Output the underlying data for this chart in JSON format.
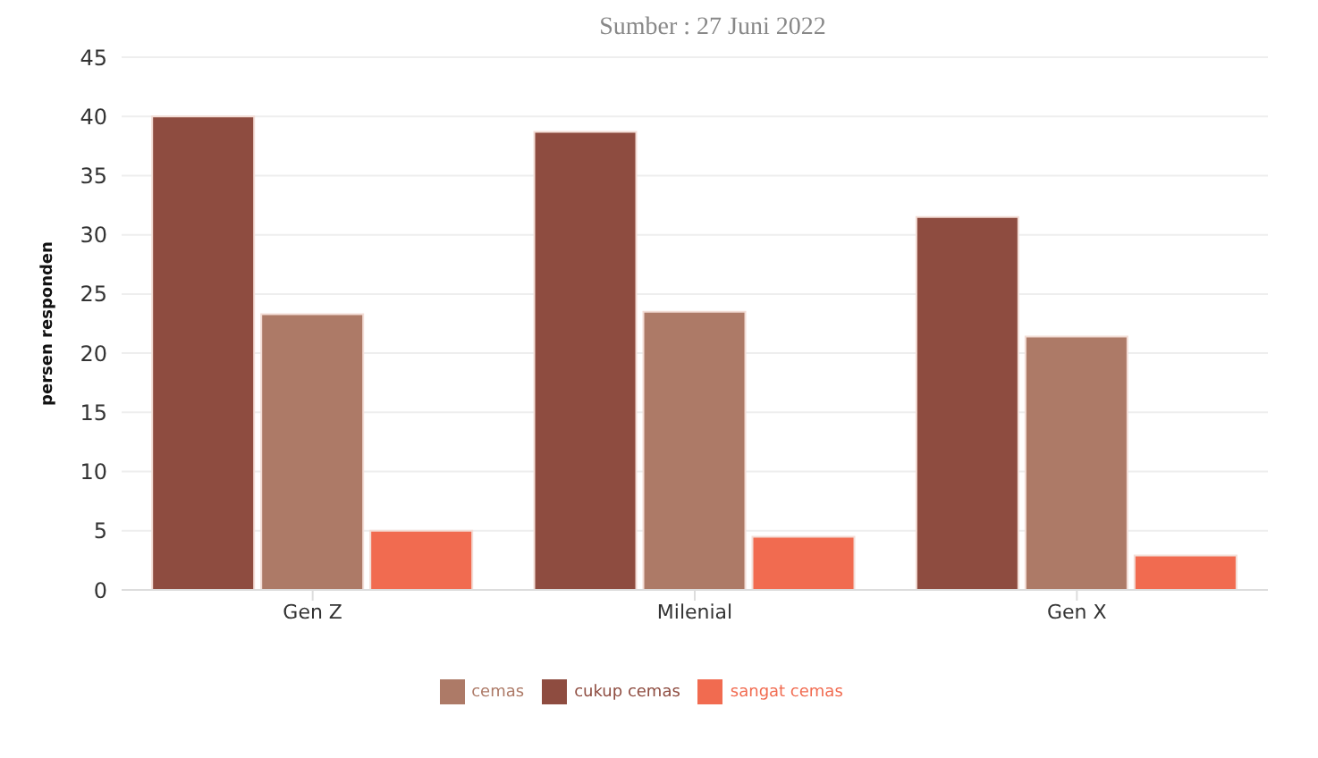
{
  "chart_data": {
    "type": "bar",
    "subtitle": "Sumber : 27 Juni 2022",
    "ylabel": "persen responden",
    "categories": [
      "Gen Z",
      "Milenial",
      "Gen X"
    ],
    "series": [
      {
        "name": "cukup cemas",
        "color": "#8e4c40",
        "values": [
          40,
          38.7,
          31.5
        ]
      },
      {
        "name": "cemas",
        "color": "#ad7a67",
        "values": [
          23.3,
          23.5,
          21.4
        ]
      },
      {
        "name": "sangat cemas",
        "color": "#f16b50",
        "values": [
          5,
          4.5,
          2.9
        ]
      }
    ],
    "ylim": [
      0,
      45
    ],
    "yticks": [
      0,
      5,
      10,
      15,
      20,
      25,
      30,
      35,
      40,
      45
    ],
    "grid": "y",
    "legend": "bottom"
  }
}
